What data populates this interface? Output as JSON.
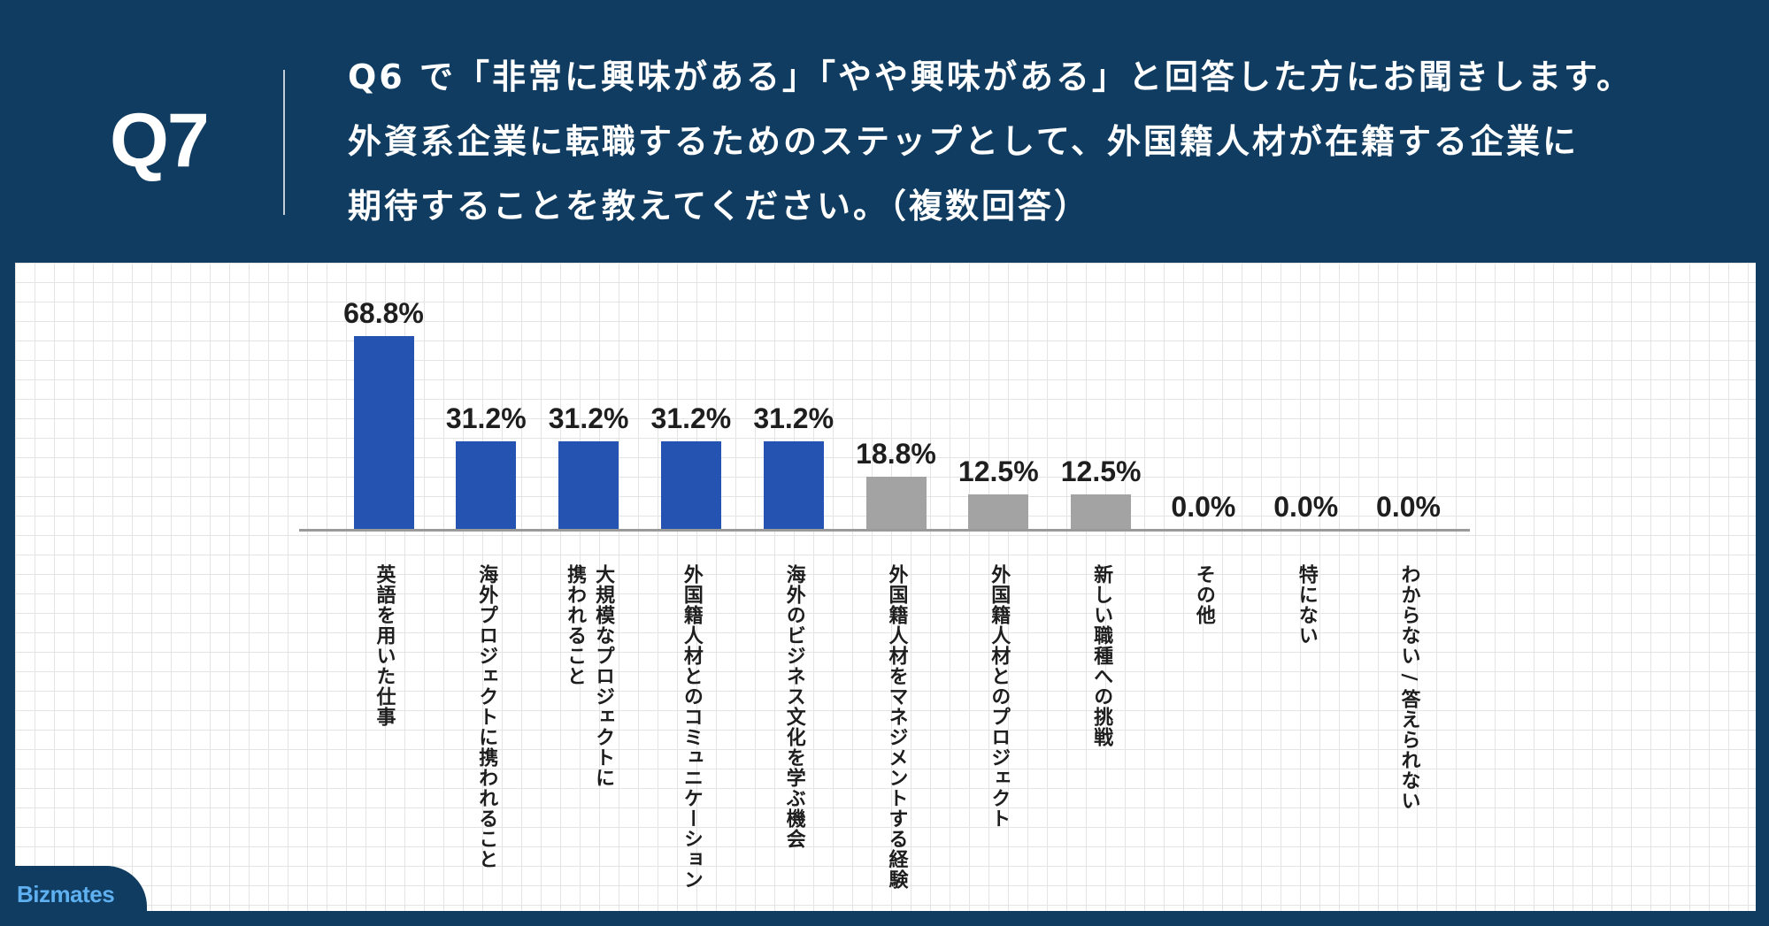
{
  "header": {
    "question_number": "Q7",
    "question_lines": [
      "Q6 で「非常に興味がある」「やや興味がある」と回答した方にお聞きします。",
      "外資系企業に転職するためのステップとして、外国籍人材が在籍する企業に",
      "期待することを教えてください。（複数回答）"
    ]
  },
  "chart_data": {
    "type": "bar",
    "categories": [
      "英語を用いた仕事",
      "海外プロジェクトに携われること",
      "大規模なプロジェクトに\n携われること",
      "外国籍人材とのコミュニケーション",
      "海外のビジネス文化を学ぶ機会",
      "外国籍人材をマネジメントする経験",
      "外国籍人材とのプロジェクト",
      "新しい職種への挑戦",
      "その他",
      "特にない",
      "わからない / 答えられない"
    ],
    "values": [
      68.8,
      31.2,
      31.2,
      31.2,
      31.2,
      18.8,
      12.5,
      12.5,
      0.0,
      0.0,
      0.0
    ],
    "data_labels": [
      "68.8%",
      "31.2%",
      "31.2%",
      "31.2%",
      "31.2%",
      "18.8%",
      "12.5%",
      "12.5%",
      "0.0%",
      "0.0%",
      "0.0%"
    ],
    "ylim": [
      0,
      100
    ],
    "bar_colors": [
      "#2453b1",
      "#2453b1",
      "#2453b1",
      "#2453b1",
      "#2453b1",
      "#a3a3a3",
      "#a3a3a3",
      "#a3a3a3",
      "#a3a3a3",
      "#a3a3a3",
      "#a3a3a3"
    ],
    "grid": true,
    "legend": "none"
  },
  "branding": {
    "logo_text": "Bizmates"
  },
  "colors": {
    "header_background": "#0f3c60",
    "header_text": "#ffffff",
    "highlight_bar": "#2453b1",
    "other_bar": "#a3a3a3",
    "panel_background": "#ffffff",
    "grid_line": "#e4e4e4",
    "logo_text": "#5fb0f0"
  }
}
